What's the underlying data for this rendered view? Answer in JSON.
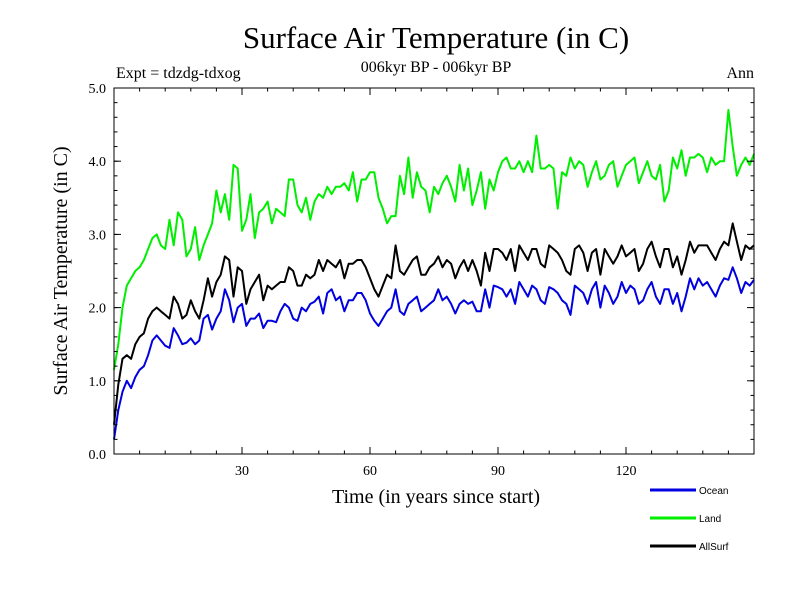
{
  "chart_data": {
    "type": "line",
    "title": "Surface Air Temperature (in C)",
    "subtitle": "006kyr BP - 006kyr BP",
    "left_label": "Expt = tdzdg-tdxog",
    "right_label": "Ann",
    "xlabel": "Time (in years since start)",
    "ylabel": "Surface Air Temperature (in C)",
    "xlim": [
      0,
      150
    ],
    "ylim": [
      0,
      5
    ],
    "x_ticks": [
      30,
      60,
      90,
      120
    ],
    "y_ticks": [
      0.0,
      1.0,
      2.0,
      3.0,
      4.0,
      5.0
    ],
    "y_tick_labels": [
      "0.0",
      "1.0",
      "2.0",
      "3.0",
      "4.0",
      "5.0"
    ],
    "legend_position": "bottom-right, outside plot",
    "series": [
      {
        "name": "Ocean",
        "color": "#0000e0",
        "values": [
          0.2,
          0.6,
          0.85,
          1.0,
          0.9,
          1.05,
          1.15,
          1.2,
          1.35,
          1.55,
          1.62,
          1.55,
          1.48,
          1.45,
          1.72,
          1.62,
          1.5,
          1.52,
          1.58,
          1.5,
          1.55,
          1.85,
          1.9,
          1.7,
          1.85,
          1.95,
          2.25,
          2.1,
          1.8,
          2.0,
          2.05,
          1.75,
          1.85,
          1.85,
          1.92,
          1.72,
          1.82,
          1.82,
          1.8,
          1.95,
          2.05,
          2.0,
          1.85,
          1.82,
          2.0,
          1.95,
          2.05,
          2.08,
          2.15,
          1.92,
          2.2,
          2.25,
          2.1,
          2.15,
          1.95,
          2.1,
          2.1,
          2.2,
          2.2,
          2.1,
          1.92,
          1.82,
          1.75,
          1.85,
          1.95,
          2.0,
          2.25,
          1.95,
          1.9,
          2.05,
          2.1,
          2.15,
          1.95,
          2.0,
          2.05,
          2.1,
          2.25,
          2.1,
          2.15,
          2.05,
          1.92,
          2.05,
          2.1,
          2.05,
          2.08,
          1.95,
          1.95,
          2.25,
          2.0,
          2.3,
          2.28,
          2.25,
          2.15,
          2.25,
          2.05,
          2.35,
          2.25,
          2.15,
          2.3,
          2.25,
          2.1,
          2.05,
          2.28,
          2.25,
          2.2,
          2.1,
          2.05,
          1.9,
          2.3,
          2.25,
          2.2,
          2.05,
          2.25,
          2.35,
          2.0,
          2.3,
          2.2,
          2.05,
          2.15,
          2.35,
          2.2,
          2.3,
          2.25,
          2.05,
          2.1,
          2.25,
          2.35,
          2.15,
          2.05,
          2.25,
          2.25,
          2.05,
          2.2,
          1.95,
          2.15,
          2.4,
          2.25,
          2.4,
          2.3,
          2.35,
          2.25,
          2.15,
          2.3,
          2.4,
          2.38,
          2.55,
          2.4,
          2.2,
          2.35,
          2.3,
          2.38
        ]
      },
      {
        "name": "Land",
        "color": "#00ee00",
        "values": [
          1.15,
          1.5,
          2.0,
          2.3,
          2.4,
          2.5,
          2.55,
          2.65,
          2.8,
          2.95,
          3.0,
          2.85,
          2.8,
          3.2,
          2.85,
          3.3,
          3.2,
          2.7,
          2.8,
          3.1,
          2.65,
          2.85,
          3.0,
          3.15,
          3.6,
          3.3,
          3.55,
          3.2,
          3.95,
          3.9,
          3.05,
          3.2,
          3.55,
          2.95,
          3.3,
          3.35,
          3.45,
          3.15,
          3.35,
          3.3,
          3.25,
          3.75,
          3.75,
          3.4,
          3.3,
          3.5,
          3.2,
          3.45,
          3.55,
          3.5,
          3.65,
          3.55,
          3.65,
          3.65,
          3.7,
          3.6,
          3.85,
          3.45,
          3.75,
          3.75,
          3.85,
          3.85,
          3.5,
          3.35,
          3.15,
          3.25,
          3.25,
          3.8,
          3.55,
          4.05,
          3.5,
          3.85,
          3.65,
          3.6,
          3.3,
          3.65,
          3.55,
          3.7,
          3.8,
          3.65,
          3.45,
          3.95,
          3.6,
          3.9,
          3.4,
          3.6,
          3.85,
          3.35,
          3.75,
          3.6,
          3.85,
          4.0,
          4.05,
          3.9,
          3.9,
          4.0,
          3.85,
          4.0,
          3.85,
          4.35,
          3.9,
          3.9,
          3.95,
          3.9,
          3.35,
          3.85,
          3.8,
          4.05,
          3.9,
          4.0,
          3.95,
          3.65,
          3.85,
          4.0,
          3.75,
          3.8,
          3.95,
          4.0,
          3.65,
          3.8,
          3.95,
          4.0,
          4.05,
          3.7,
          3.85,
          4.0,
          3.8,
          3.75,
          3.95,
          3.45,
          3.6,
          4.05,
          3.9,
          4.15,
          3.8,
          4.05,
          4.05,
          4.1,
          4.05,
          3.85,
          4.05,
          3.95,
          4.0,
          4.0,
          4.7,
          4.2,
          3.8,
          3.95,
          4.05,
          3.95,
          4.1
        ]
      },
      {
        "name": "AllSurf",
        "color": "#000000",
        "values": [
          0.4,
          0.95,
          1.3,
          1.35,
          1.3,
          1.5,
          1.6,
          1.65,
          1.85,
          1.95,
          2.0,
          1.95,
          1.9,
          1.85,
          2.15,
          2.05,
          1.85,
          1.9,
          2.1,
          1.95,
          1.85,
          2.1,
          2.4,
          2.15,
          2.35,
          2.45,
          2.7,
          2.65,
          2.15,
          2.55,
          2.5,
          2.05,
          2.25,
          2.35,
          2.45,
          2.1,
          2.3,
          2.25,
          2.3,
          2.35,
          2.35,
          2.55,
          2.5,
          2.3,
          2.3,
          2.45,
          2.4,
          2.45,
          2.65,
          2.5,
          2.65,
          2.6,
          2.55,
          2.65,
          2.4,
          2.6,
          2.6,
          2.65,
          2.65,
          2.55,
          2.4,
          2.25,
          2.15,
          2.3,
          2.45,
          2.4,
          2.85,
          2.5,
          2.45,
          2.55,
          2.65,
          2.7,
          2.45,
          2.45,
          2.55,
          2.6,
          2.7,
          2.55,
          2.65,
          2.6,
          2.4,
          2.55,
          2.65,
          2.5,
          2.65,
          2.5,
          2.3,
          2.75,
          2.5,
          2.8,
          2.8,
          2.75,
          2.65,
          2.8,
          2.5,
          2.85,
          2.75,
          2.65,
          2.8,
          2.8,
          2.6,
          2.55,
          2.85,
          2.8,
          2.75,
          2.65,
          2.5,
          2.45,
          2.8,
          2.85,
          2.75,
          2.5,
          2.75,
          2.8,
          2.45,
          2.8,
          2.7,
          2.6,
          2.7,
          2.85,
          2.7,
          2.75,
          2.8,
          2.5,
          2.6,
          2.8,
          2.9,
          2.7,
          2.55,
          2.8,
          2.8,
          2.55,
          2.7,
          2.45,
          2.65,
          2.9,
          2.75,
          2.85,
          2.85,
          2.85,
          2.75,
          2.65,
          2.8,
          2.9,
          2.85,
          3.15,
          2.9,
          2.65,
          2.85,
          2.8,
          2.85
        ]
      }
    ]
  }
}
